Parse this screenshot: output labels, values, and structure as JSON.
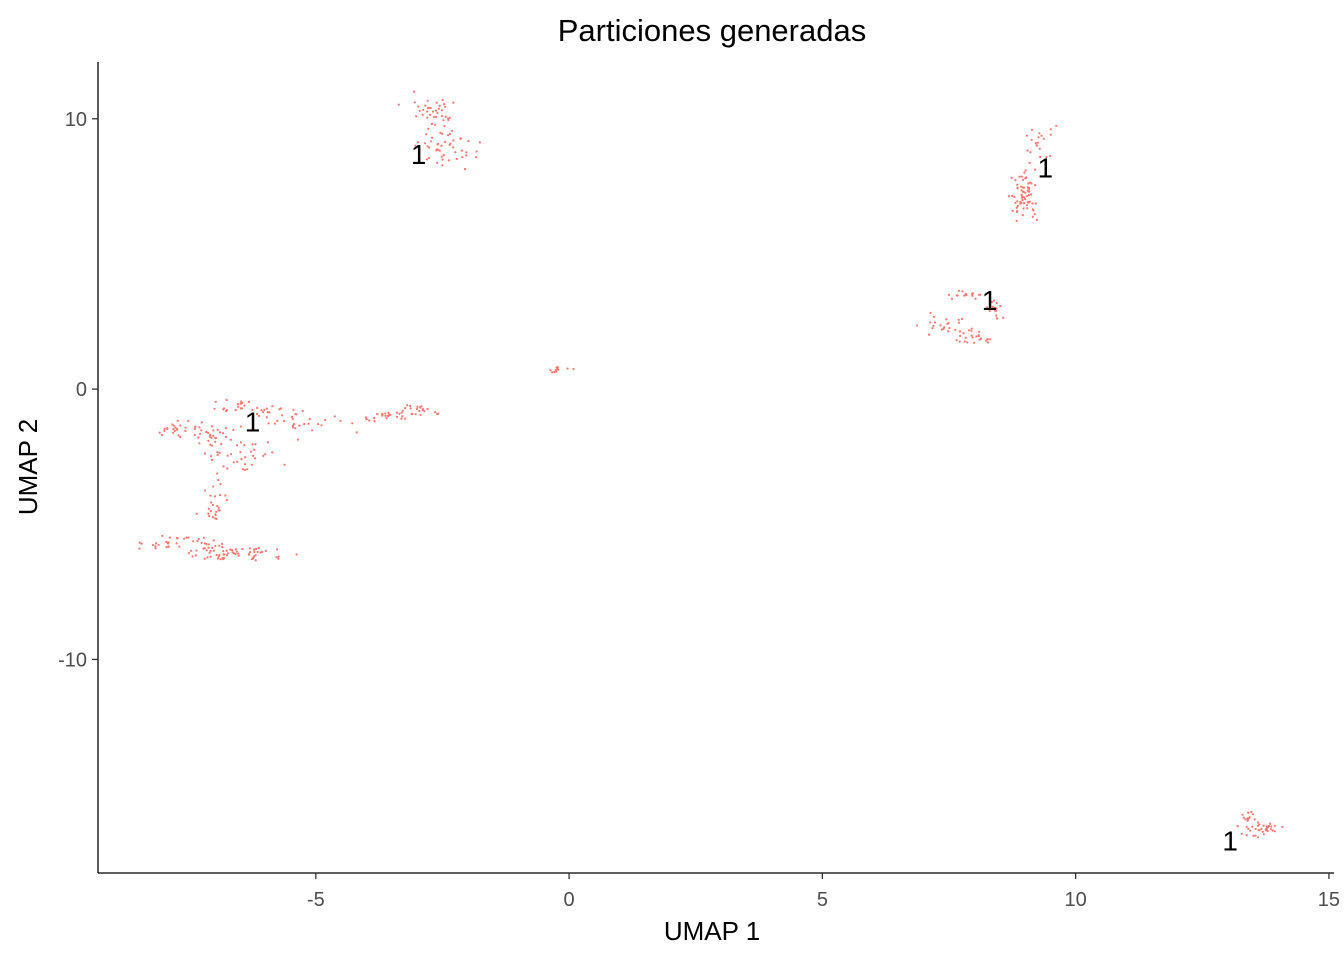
{
  "chart_data": {
    "type": "scatter",
    "title": "Particiones generadas",
    "xlabel": "UMAP 1",
    "ylabel": "UMAP 2",
    "xlim": [
      -9.3,
      15.1
    ],
    "ylim": [
      -17.9,
      12.1
    ],
    "grid": false,
    "legend": "none",
    "point_color": "#F8766D",
    "x_ticks": [
      {
        "value": -5,
        "label": "-5"
      },
      {
        "value": 0,
        "label": "0"
      },
      {
        "value": 5,
        "label": "5"
      },
      {
        "value": 10,
        "label": "10"
      },
      {
        "value": 15,
        "label": "15"
      }
    ],
    "y_ticks": [
      {
        "value": 10,
        "label": "10"
      },
      {
        "value": 0,
        "label": "0"
      },
      {
        "value": -10,
        "label": "-10"
      }
    ],
    "series": [
      {
        "clusters": [
          {
            "x": -2.7,
            "y": 10.2,
            "sx": 0.25,
            "sy": 0.35,
            "n": 40
          },
          {
            "x": -2.45,
            "y": 8.9,
            "sx": 0.3,
            "sy": 0.3,
            "n": 45
          },
          {
            "x": 9.0,
            "y": 7.5,
            "sx": 0.12,
            "sy": 0.35,
            "n": 40
          },
          {
            "x": 9.0,
            "y": 6.8,
            "sx": 0.15,
            "sy": 0.25,
            "n": 30
          },
          {
            "x": 9.4,
            "y": 9.0,
            "sx": 0.2,
            "sy": 0.3,
            "n": 20
          },
          {
            "x": 7.8,
            "y": 3.5,
            "sx": 0.15,
            "sy": 0.1,
            "n": 15
          },
          {
            "x": 7.5,
            "y": 2.3,
            "sx": 0.25,
            "sy": 0.2,
            "n": 25
          },
          {
            "x": 8.0,
            "y": 1.9,
            "sx": 0.2,
            "sy": 0.12,
            "n": 20
          },
          {
            "x": 8.4,
            "y": 3.0,
            "sx": 0.1,
            "sy": 0.25,
            "n": 15
          },
          {
            "x": -0.15,
            "y": 0.7,
            "sx": 0.12,
            "sy": 0.07,
            "n": 12
          },
          {
            "x": -7.7,
            "y": -1.5,
            "sx": 0.3,
            "sy": 0.15,
            "n": 30
          },
          {
            "x": -7.1,
            "y": -1.7,
            "sx": 0.25,
            "sy": 0.2,
            "n": 20
          },
          {
            "x": -6.5,
            "y": -0.7,
            "sx": 0.35,
            "sy": 0.15,
            "n": 25
          },
          {
            "x": -6.5,
            "y": -2.6,
            "sx": 0.35,
            "sy": 0.4,
            "n": 40
          },
          {
            "x": -7.0,
            "y": -4.2,
            "sx": 0.15,
            "sy": 0.35,
            "n": 25
          },
          {
            "x": -5.7,
            "y": -1.0,
            "sx": 0.3,
            "sy": 0.2,
            "n": 20
          },
          {
            "x": -5.0,
            "y": -1.4,
            "sx": 0.35,
            "sy": 0.2,
            "n": 15
          },
          {
            "x": -3.6,
            "y": -1.0,
            "sx": 0.3,
            "sy": 0.1,
            "n": 25
          },
          {
            "x": -2.9,
            "y": -0.75,
            "sx": 0.25,
            "sy": 0.1,
            "n": 20
          },
          {
            "x": -7.6,
            "y": -5.7,
            "sx": 0.35,
            "sy": 0.15,
            "n": 40
          },
          {
            "x": -6.5,
            "y": -6.1,
            "sx": 0.5,
            "sy": 0.15,
            "n": 60
          },
          {
            "x": 13.4,
            "y": -15.8,
            "sx": 0.08,
            "sy": 0.15,
            "n": 12
          },
          {
            "x": 13.6,
            "y": -16.4,
            "sx": 0.2,
            "sy": 0.15,
            "n": 20
          },
          {
            "x": 13.8,
            "y": -16.2,
            "sx": 0.15,
            "sy": 0.1,
            "n": 15
          }
        ]
      }
    ],
    "labels": [
      {
        "text": "1",
        "x": -2.97,
        "y": 8.7
      },
      {
        "text": "1",
        "x": 9.4,
        "y": 8.2
      },
      {
        "text": "1",
        "x": 8.3,
        "y": 3.3
      },
      {
        "text": "1",
        "x": -6.25,
        "y": -1.2
      },
      {
        "text": "1",
        "x": 13.05,
        "y": -16.7
      }
    ]
  }
}
